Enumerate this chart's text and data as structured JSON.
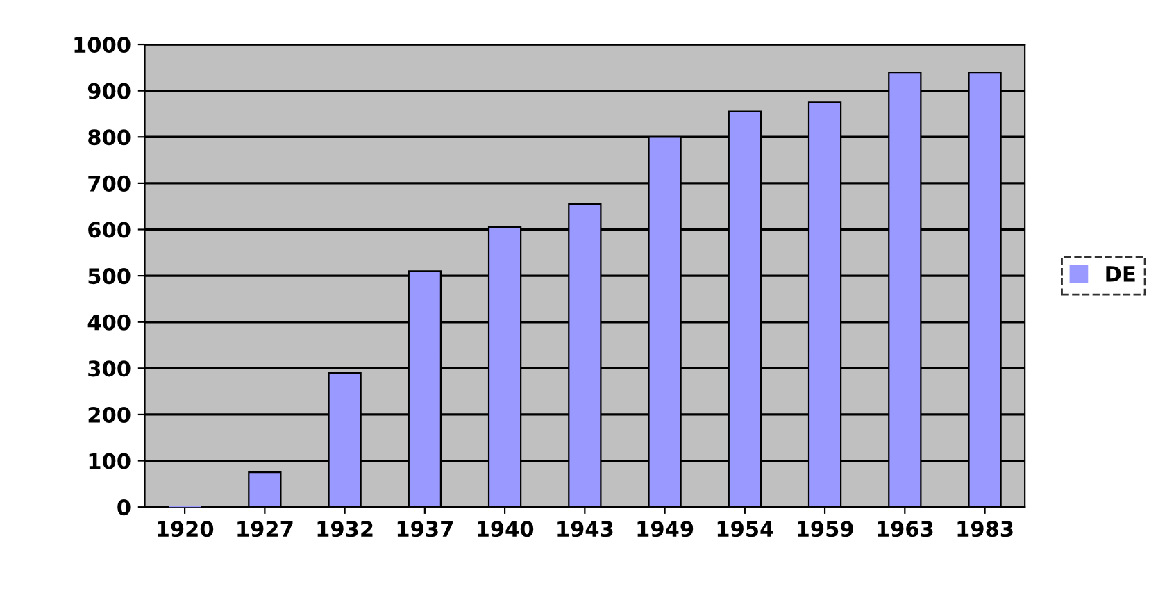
{
  "chart_data": {
    "type": "bar",
    "categories": [
      "1920",
      "1927",
      "1932",
      "1937",
      "1940",
      "1943",
      "1949",
      "1954",
      "1959",
      "1963",
      "1983"
    ],
    "series": [
      {
        "name": "DE",
        "color": "#9999ff",
        "values": [
          0,
          75,
          290,
          510,
          605,
          655,
          800,
          855,
          875,
          940,
          940
        ]
      }
    ],
    "ylim": [
      0,
      1000
    ],
    "yticks": [
      0,
      100,
      200,
      300,
      400,
      500,
      600,
      700,
      800,
      900,
      1000
    ],
    "grid": "y",
    "legend": "right"
  }
}
